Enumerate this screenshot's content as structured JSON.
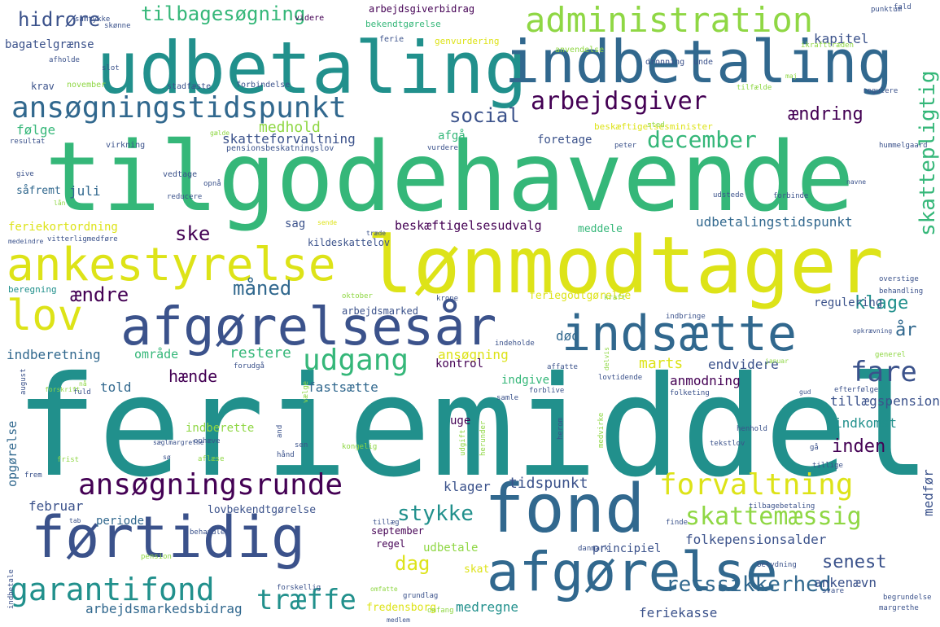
{
  "palette": {
    "dark_purple": "#440154",
    "indigo": "#3b528b",
    "blue": "#31688e",
    "teal": "#21908c",
    "green": "#35b779",
    "light_green": "#8fd744",
    "yellow": "#dde318"
  },
  "words": [
    {
      "text": "feriemiddel",
      "color": "#21908c"
    },
    {
      "text": "tilgodehavende",
      "color": "#35b779"
    },
    {
      "text": "lønmodtager",
      "color": "#dde318"
    },
    {
      "text": "udbetaling",
      "color": "#21908c"
    },
    {
      "text": "indbetaling",
      "color": "#31688e"
    },
    {
      "text": "afgørelsesår",
      "color": "#3b528b"
    },
    {
      "text": "fond",
      "color": "#31688e"
    },
    {
      "text": "førtidig",
      "color": "#3b528b"
    },
    {
      "text": "indsætte",
      "color": "#31688e"
    },
    {
      "text": "afgørelse",
      "color": "#31688e"
    },
    {
      "text": "ankestyrelse",
      "color": "#dde318"
    },
    {
      "text": "lov",
      "color": "#dde318"
    },
    {
      "text": "administration",
      "color": "#8fd744"
    },
    {
      "text": "ansøgningstidspunkt",
      "color": "#31688e"
    },
    {
      "text": "ansøgningsrunde",
      "color": "#440154"
    },
    {
      "text": "arbejdsgiver",
      "color": "#440154"
    },
    {
      "text": "garantifond",
      "color": "#21908c"
    },
    {
      "text": "forvaltning",
      "color": "#dde318"
    },
    {
      "text": "skattemæssig",
      "color": "#8fd744"
    },
    {
      "text": "træffe",
      "color": "#21908c"
    },
    {
      "text": "udgang",
      "color": "#35b779"
    },
    {
      "text": "fare",
      "color": "#3b528b"
    },
    {
      "text": "skattepligtig",
      "color": "#35b779"
    },
    {
      "text": "retssikkerhed",
      "color": "#31688e"
    },
    {
      "text": "december",
      "color": "#35b779"
    },
    {
      "text": "stykke",
      "color": "#21908c"
    },
    {
      "text": "tilbagesøgning",
      "color": "#35b779"
    },
    {
      "text": "hidrøre",
      "color": "#3b528b"
    },
    {
      "text": "social",
      "color": "#3b528b"
    },
    {
      "text": "ændring",
      "color": "#440154"
    },
    {
      "text": "inden",
      "color": "#440154"
    },
    {
      "text": "klage",
      "color": "#21908c"
    },
    {
      "text": "senest",
      "color": "#3b528b"
    },
    {
      "text": "dag",
      "color": "#dde318"
    },
    {
      "text": "måned",
      "color": "#31688e"
    },
    {
      "text": "ændre",
      "color": "#440154"
    },
    {
      "text": "ske",
      "color": "#440154"
    },
    {
      "text": "hænde",
      "color": "#440154"
    },
    {
      "text": "år",
      "color": "#31688e"
    },
    {
      "text": "kapitel",
      "color": "#3b528b"
    },
    {
      "text": "medhold",
      "color": "#8fd744"
    },
    {
      "text": "skatteforvaltning",
      "color": "#3b528b"
    },
    {
      "text": "udbetalingstidspunkt",
      "color": "#31688e"
    },
    {
      "text": "beskæftigelsesudvalg",
      "color": "#440154"
    },
    {
      "text": "tillægspension",
      "color": "#3b528b"
    },
    {
      "text": "indkomst",
      "color": "#21908c"
    },
    {
      "text": "folkepensionsalder",
      "color": "#3b528b"
    },
    {
      "text": "indberetning",
      "color": "#31688e"
    },
    {
      "text": "restere",
      "color": "#35b779"
    },
    {
      "text": "tidspunkt",
      "color": "#3b528b"
    },
    {
      "text": "ankenævn",
      "color": "#3b528b"
    },
    {
      "text": "feriekasse",
      "color": "#3b528b"
    },
    {
      "text": "arbejdsmarkedsbidrag",
      "color": "#31688e"
    },
    {
      "text": "medregne",
      "color": "#21908c"
    },
    {
      "text": "fastsætte",
      "color": "#31688e"
    },
    {
      "text": "juli",
      "color": "#31688e"
    },
    {
      "text": "følge",
      "color": "#35b779"
    },
    {
      "text": "krav",
      "color": "#3b528b"
    },
    {
      "text": "bagatelgrænse",
      "color": "#3b528b"
    },
    {
      "text": "foretage",
      "color": "#3b528b"
    },
    {
      "text": "afgå",
      "color": "#35b779"
    },
    {
      "text": "sag",
      "color": "#3b528b"
    },
    {
      "text": "feriekortordning",
      "color": "#dde318"
    },
    {
      "text": "område",
      "color": "#35b779"
    },
    {
      "text": "told",
      "color": "#31688e"
    },
    {
      "text": "død",
      "color": "#31688e"
    },
    {
      "text": "marts",
      "color": "#dde318"
    },
    {
      "text": "endvidere",
      "color": "#3b528b"
    },
    {
      "text": "anmodning",
      "color": "#440154"
    },
    {
      "text": "ansøgning",
      "color": "#dde318"
    },
    {
      "text": "regulering",
      "color": "#3b528b"
    },
    {
      "text": "klager",
      "color": "#3b528b"
    },
    {
      "text": "februar",
      "color": "#3b528b"
    },
    {
      "text": "opgørelse",
      "color": "#31688e"
    },
    {
      "text": "medfør",
      "color": "#3b528b"
    },
    {
      "text": "udbetale",
      "color": "#8fd744"
    },
    {
      "text": "principiel",
      "color": "#3b528b"
    },
    {
      "text": "kontrol",
      "color": "#440154"
    },
    {
      "text": "indgive",
      "color": "#35b779"
    },
    {
      "text": "indberette",
      "color": "#8fd744"
    },
    {
      "text": "uge",
      "color": "#440154"
    },
    {
      "text": "periode",
      "color": "#31688e"
    },
    {
      "text": "lovbekendtgørelse",
      "color": "#3b528b"
    },
    {
      "text": "arbejdsmarked",
      "color": "#3b528b"
    },
    {
      "text": "meddele",
      "color": "#35b779"
    },
    {
      "text": "feriegodtgørelse",
      "color": "#dde318"
    },
    {
      "text": "kildeskattelov",
      "color": "#3b528b"
    },
    {
      "text": "såfremt",
      "color": "#31688e"
    },
    {
      "text": "beregning",
      "color": "#21908c"
    },
    {
      "text": "arbejdsgiverbidrag",
      "color": "#440154"
    },
    {
      "text": "bekendtgørelse",
      "color": "#35b779"
    },
    {
      "text": "genvurdering",
      "color": "#dde318"
    },
    {
      "text": "beskæftigelsesminister",
      "color": "#dde318"
    },
    {
      "text": "pensionsbeskatningslov",
      "color": "#3b528b"
    },
    {
      "text": "fredensborg",
      "color": "#dde318"
    },
    {
      "text": "regel",
      "color": "#440154"
    },
    {
      "text": "skat",
      "color": "#dde318"
    },
    {
      "text": "september",
      "color": "#440154"
    },
    {
      "text": "samtykke",
      "color": "#3b528b"
    },
    {
      "text": "skønne",
      "color": "#3b528b"
    },
    {
      "text": "videre",
      "color": "#440154"
    },
    {
      "text": "ferie",
      "color": "#3b528b"
    },
    {
      "text": "afholde",
      "color": "#3b528b"
    },
    {
      "text": "slot",
      "color": "#3b528b"
    },
    {
      "text": "november",
      "color": "#8fd744"
    },
    {
      "text": "stadfæste",
      "color": "#3b528b"
    },
    {
      "text": "forbindelse",
      "color": "#3b528b"
    },
    {
      "text": "anvendelse",
      "color": "#8fd744"
    },
    {
      "text": "dronning",
      "color": "#3b528b"
    },
    {
      "text": "unde",
      "color": "#3b528b"
    },
    {
      "text": "ikrafttræden",
      "color": "#8fd744"
    },
    {
      "text": "punktum",
      "color": "#3b528b"
    },
    {
      "text": "fald",
      "color": "#3b528b"
    },
    {
      "text": "tilfælde",
      "color": "#8fd744"
    },
    {
      "text": "regulere",
      "color": "#3b528b"
    },
    {
      "text": "resultat",
      "color": "#3b528b"
    },
    {
      "text": "virkning",
      "color": "#3b528b"
    },
    {
      "text": "give",
      "color": "#3b528b"
    },
    {
      "text": "vedtage",
      "color": "#3b528b"
    },
    {
      "text": "opnå",
      "color": "#3b528b"
    },
    {
      "text": "reducere",
      "color": "#3b528b"
    },
    {
      "text": "vurdere",
      "color": "#3b528b"
    },
    {
      "text": "peter",
      "color": "#3b528b"
    },
    {
      "text": "hummelgaard",
      "color": "#3b528b"
    },
    {
      "text": "sted",
      "color": "#8fd744"
    },
    {
      "text": "udstede",
      "color": "#3b528b"
    },
    {
      "text": "forbinde",
      "color": "#3b528b"
    },
    {
      "text": "sende",
      "color": "#dde318"
    },
    {
      "text": "træde",
      "color": "#3b528b"
    },
    {
      "text": "vitterligmedføre",
      "color": "#3b528b"
    },
    {
      "text": "medeindre",
      "color": "#3b528b"
    },
    {
      "text": "oktober",
      "color": "#8fd744"
    },
    {
      "text": "krone",
      "color": "#3b528b"
    },
    {
      "text": "kraft",
      "color": "#8fd744"
    },
    {
      "text": "overstige",
      "color": "#3b528b"
    },
    {
      "text": "behandling",
      "color": "#3b528b"
    },
    {
      "text": "indbringe",
      "color": "#3b528b"
    },
    {
      "text": "opkrævning",
      "color": "#3b528b"
    },
    {
      "text": "indeholde",
      "color": "#3b528b"
    },
    {
      "text": "generel",
      "color": "#8fd744"
    },
    {
      "text": "affatte",
      "color": "#3b528b"
    },
    {
      "text": "lovtidende",
      "color": "#3b528b"
    },
    {
      "text": "efterfølge",
      "color": "#3b528b"
    },
    {
      "text": "folketing",
      "color": "#3b528b"
    },
    {
      "text": "delvis",
      "color": "#8fd744"
    },
    {
      "text": "samle",
      "color": "#3b528b"
    },
    {
      "text": "forblive",
      "color": "#3b528b"
    },
    {
      "text": "henhold",
      "color": "#3b528b"
    },
    {
      "text": "tekstlov",
      "color": "#3b528b"
    },
    {
      "text": "tillige",
      "color": "#3b528b"
    },
    {
      "text": "gå",
      "color": "#3b528b"
    },
    {
      "text": "forudgå",
      "color": "#3b528b"
    },
    {
      "text": "fuld",
      "color": "#3b528b"
    },
    {
      "text": "ophæve",
      "color": "#3b528b"
    },
    {
      "text": "aflæse",
      "color": "#8fd744"
    },
    {
      "text": "kongelig",
      "color": "#8fd744"
    },
    {
      "text": "sen",
      "color": "#3b528b"
    },
    {
      "text": "hånd",
      "color": "#3b528b"
    },
    {
      "text": "frist",
      "color": "#8fd744"
    },
    {
      "text": "behandle",
      "color": "#3b528b"
    },
    {
      "text": "tillæg",
      "color": "#3b528b"
    },
    {
      "text": "finde",
      "color": "#3b528b"
    },
    {
      "text": "tilbagebetaling",
      "color": "#3b528b"
    },
    {
      "text": "pension",
      "color": "#8fd744"
    },
    {
      "text": "danmark",
      "color": "#3b528b"
    },
    {
      "text": "betydning",
      "color": "#3b528b"
    },
    {
      "text": "forskellig",
      "color": "#3b528b"
    },
    {
      "text": "omfatte",
      "color": "#8fd744"
    },
    {
      "text": "grundlag",
      "color": "#3b528b"
    },
    {
      "text": "svare",
      "color": "#3b528b"
    },
    {
      "text": "begrundelse",
      "color": "#3b528b"
    },
    {
      "text": "margrethe",
      "color": "#3b528b"
    },
    {
      "text": "omfang",
      "color": "#8fd744"
    },
    {
      "text": "medlem",
      "color": "#3b528b"
    },
    {
      "text": "frem",
      "color": "#3b528b"
    },
    {
      "text": "tab",
      "color": "#3b528b"
    },
    {
      "text": "indbetale",
      "color": "#3b528b"
    },
    {
      "text": "august",
      "color": "#3b528b"
    },
    {
      "text": "nå",
      "color": "#8fd744"
    },
    {
      "text": "forskrift",
      "color": "#8fd744"
    },
    {
      "text": "vælge",
      "color": "#8fd744"
    },
    {
      "text": "and",
      "color": "#3b528b"
    },
    {
      "text": "udgift",
      "color": "#8fd744"
    },
    {
      "text": "herunder",
      "color": "#8fd744"
    },
    {
      "text": "herom",
      "color": "#3b528b"
    },
    {
      "text": "medvirke",
      "color": "#8fd744"
    },
    {
      "text": "sæglmargrethe",
      "color": "#3b528b"
    },
    {
      "text": "lån",
      "color": "#8fd744"
    },
    {
      "text": "maj",
      "color": "#8fd744"
    },
    {
      "text": "januar",
      "color": "#8fd744"
    },
    {
      "text": "gud",
      "color": "#3b528b"
    },
    {
      "text": "sø",
      "color": "#3b528b"
    },
    {
      "text": "gælde",
      "color": "#8fd744"
    },
    {
      "text": "navne",
      "color": "#3b528b"
    },
    {
      "text": "made",
      "color": "#dde318"
    }
  ]
}
